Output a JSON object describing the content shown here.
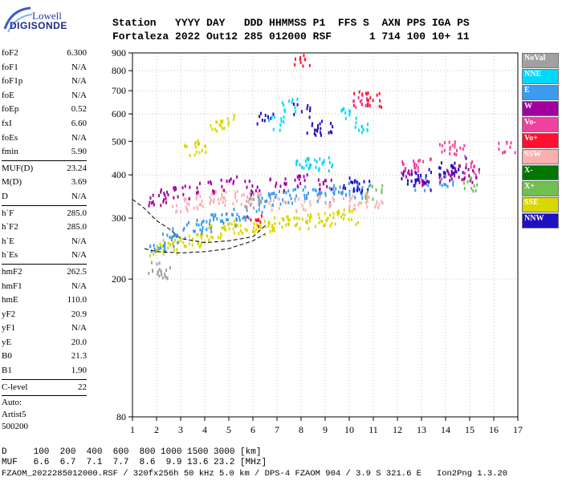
{
  "logo": {
    "line1": "Lowell",
    "line2": "DIGISONDE"
  },
  "header": {
    "row1": [
      "Station",
      "YYYY DAY",
      "DDD",
      "HHMMSS",
      "P1",
      "FFS",
      "S",
      "AXN",
      "PPS",
      "IGA",
      "PS"
    ],
    "row2": [
      "Fortaleza",
      "2022 Out12",
      "285",
      "012000",
      "RSF",
      "",
      "1",
      "714",
      "100",
      "10+",
      "11"
    ],
    "row1_text": "Station   YYYY DAY   DDD HHMMSS P1  FFS S  AXN PPS IGA PS",
    "row2_text": "Fortaleza 2022 Out12 285 012000 RSF      1 714 100 10+ 11"
  },
  "params": {
    "foF2": "6.300",
    "foF1": "N/A",
    "foF1p": "N/A",
    "foE": "N/A",
    "foEp": "0.52",
    "fxI": "6.60",
    "foEs": "N/A",
    "fmin": "5.90",
    "MUFD": "23.24",
    "MD": "3.69",
    "D": "N/A",
    "hF": "285.0",
    "hF2": "285.0",
    "hE": "N/A",
    "hEs": "N/A",
    "hmF2": "262.5",
    "hmF1": "N/A",
    "hmE": "110.0",
    "yF2": "20.9",
    "yF1": "N/A",
    "yE": "20.0",
    "B0": "21.3",
    "B1": "1.90",
    "clevel": "22",
    "auto_label": "Auto:",
    "artist": "Artist5",
    "artist_version": "500200"
  },
  "param_labels": {
    "foF2": "foF2",
    "foF1": "foF1",
    "foF1p": "foF1p",
    "foE": "foE",
    "foEp": "foEp",
    "fxI": "fxI",
    "foEs": "foEs",
    "fmin": "fmin",
    "MUFD": "MUF(D)",
    "MD": "M(D)",
    "D": "D",
    "hF": "h`F",
    "hF2": "h`F2",
    "hE": "h`E",
    "hEs": "h`Es",
    "hmF2": "hmF2",
    "hmF1": "hmF1",
    "hmE": "hmE",
    "yF2": "yF2",
    "yF1": "yF1",
    "yE": "yE",
    "B0": "B0",
    "B1": "B1",
    "clevel": "C-level"
  },
  "legend": [
    {
      "label": "NoVal",
      "color": "#a0a0a0"
    },
    {
      "label": "NNE",
      "color": "#00d8ff"
    },
    {
      "label": "E",
      "color": "#3a9bef"
    },
    {
      "label": "W",
      "color": "#a000a0"
    },
    {
      "label": "Vo-",
      "color": "#f040a0"
    },
    {
      "label": "Vo+",
      "color": "#ff1030"
    },
    {
      "label": "SSW",
      "color": "#f8b0b0"
    },
    {
      "label": "X-",
      "color": "#007800"
    },
    {
      "label": "X+",
      "color": "#70c050"
    },
    {
      "label": "SSE",
      "color": "#d8d800"
    },
    {
      "label": "NNW",
      "color": "#2010c0"
    }
  ],
  "bottom": {
    "d_label": "D",
    "d_values": [
      "100",
      "200",
      "400",
      "600",
      "800",
      "1000",
      "1500",
      "3000"
    ],
    "d_unit": "[km]",
    "muf_label": "MUF",
    "muf_values": [
      "6.6",
      "6.7",
      "7.1",
      "7.7",
      "8.6",
      "9.9",
      "13.6",
      "23.2"
    ],
    "muf_unit": "[MHz]",
    "d_line": "D     100  200  400  600  800 1000 1500 3000 [km]",
    "muf_line": "MUF   6.6  6.7  7.1  7.7  8.6  9.9 13.6 23.2 [MHz]"
  },
  "footer": {
    "text": "FZAOM_2022285012000.RSF / 320fx256h 50 kHz 5.0 km / DPS-4 FZAOM 904 / 3.9 S 321.6 E   Ion2Png 1.3.20"
  },
  "chart_data": {
    "type": "scatter",
    "title": "",
    "xlabel": "",
    "ylabel": "",
    "xlim": [
      1,
      17
    ],
    "ylim": [
      80,
      900
    ],
    "y_scale": "log",
    "x_ticks": [
      1,
      2,
      3,
      4,
      5,
      6,
      7,
      8,
      9,
      10,
      11,
      12,
      13,
      14,
      15,
      16,
      17
    ],
    "y_ticks": [
      80,
      200,
      300,
      400,
      500,
      600,
      700,
      800,
      900
    ],
    "grid": "dotted",
    "series": [
      {
        "name": "SSE",
        "color": "#d8d800",
        "points": [
          [
            2,
            245
          ],
          [
            2.5,
            250
          ],
          [
            3,
            255
          ],
          [
            3.5,
            262
          ],
          [
            4,
            268
          ],
          [
            4.5,
            275
          ],
          [
            5,
            280
          ],
          [
            5.5,
            285
          ],
          [
            6,
            290
          ],
          [
            6.5,
            285
          ],
          [
            7,
            290
          ],
          [
            7.5,
            292
          ],
          [
            8,
            295
          ],
          [
            8.5,
            300
          ],
          [
            9,
            300
          ],
          [
            9.5,
            305
          ],
          [
            10,
            305
          ],
          [
            3.5,
            480
          ],
          [
            4,
            490
          ],
          [
            4.5,
            560
          ],
          [
            5,
            575
          ]
        ]
      },
      {
        "name": "E",
        "color": "#3a9bef",
        "points": [
          [
            2,
            250
          ],
          [
            2.5,
            260
          ],
          [
            3,
            270
          ],
          [
            3.5,
            285
          ],
          [
            4,
            290
          ],
          [
            4.5,
            300
          ],
          [
            5,
            300
          ],
          [
            5.5,
            310
          ],
          [
            6,
            330
          ],
          [
            6.5,
            340
          ],
          [
            7,
            345
          ],
          [
            7.5,
            350
          ],
          [
            8,
            360
          ],
          [
            8.5,
            355
          ],
          [
            9,
            350
          ],
          [
            9.5,
            360
          ],
          [
            10,
            370
          ],
          [
            10.5,
            360
          ],
          [
            13,
            380
          ],
          [
            14,
            390
          ]
        ]
      },
      {
        "name": "SSW",
        "color": "#f8b0b0",
        "points": [
          [
            3,
            330
          ],
          [
            3.5,
            335
          ],
          [
            4,
            340
          ],
          [
            4.5,
            345
          ],
          [
            5,
            350
          ],
          [
            5.5,
            345
          ],
          [
            6,
            345
          ],
          [
            7,
            330
          ],
          [
            8,
            330
          ],
          [
            9,
            335
          ],
          [
            10,
            335
          ],
          [
            10.5,
            340
          ],
          [
            11,
            340
          ]
        ]
      },
      {
        "name": "W",
        "color": "#a000a0",
        "points": [
          [
            2,
            340
          ],
          [
            2.5,
            350
          ],
          [
            3,
            360
          ],
          [
            4,
            370
          ],
          [
            5,
            380
          ],
          [
            6,
            370
          ],
          [
            7,
            375
          ],
          [
            8,
            390
          ],
          [
            9,
            385
          ],
          [
            12.5,
            400
          ],
          [
            13,
            380
          ],
          [
            14,
            400
          ],
          [
            14.5,
            410
          ],
          [
            15,
            400
          ]
        ]
      },
      {
        "name": "NNW",
        "color": "#2010c0",
        "points": [
          [
            6.5,
            580
          ],
          [
            8,
            620
          ],
          [
            8.5,
            545
          ],
          [
            9,
            550
          ],
          [
            10,
            380
          ],
          [
            10.5,
            370
          ],
          [
            12.5,
            390
          ],
          [
            13,
            400
          ],
          [
            14,
            420
          ],
          [
            14.5,
            430
          ]
        ]
      },
      {
        "name": "NNE",
        "color": "#00d8ff",
        "points": [
          [
            7,
            570
          ],
          [
            7.5,
            640
          ],
          [
            8,
            440
          ],
          [
            8.5,
            430
          ],
          [
            9,
            435
          ],
          [
            10,
            600
          ],
          [
            10.5,
            560
          ]
        ]
      },
      {
        "name": "Vo-",
        "color": "#f040a0",
        "points": [
          [
            10.5,
            660
          ],
          [
            12.5,
            420
          ],
          [
            13,
            440
          ],
          [
            14,
            480
          ],
          [
            14.5,
            470
          ],
          [
            15,
            420
          ],
          [
            16.5,
            485
          ]
        ]
      },
      {
        "name": "Vo+",
        "color": "#ff1030",
        "points": [
          [
            6,
            300
          ],
          [
            8,
            860
          ],
          [
            10.5,
            670
          ],
          [
            11,
            665
          ]
        ]
      },
      {
        "name": "X+",
        "color": "#70c050",
        "points": [
          [
            11,
            360
          ],
          [
            15,
            380
          ]
        ]
      },
      {
        "name": "NoVal",
        "color": "#a0a0a0",
        "points": [
          [
            2,
            215
          ],
          [
            2.3,
            212
          ],
          [
            6,
            340
          ]
        ]
      }
    ],
    "profile_curve": [
      [
        1,
        340
      ],
      [
        1.5,
        320
      ],
      [
        2,
        295
      ],
      [
        2.5,
        280
      ],
      [
        3,
        262
      ],
      [
        4,
        255
      ],
      [
        5,
        258
      ],
      [
        6,
        265
      ],
      [
        6.5,
        285
      ]
    ],
    "profile_curve_lower": [
      [
        1.5,
        245
      ],
      [
        2,
        240
      ],
      [
        3,
        238
      ],
      [
        4,
        240
      ],
      [
        5,
        245
      ],
      [
        6,
        258
      ],
      [
        6.5,
        270
      ]
    ]
  }
}
